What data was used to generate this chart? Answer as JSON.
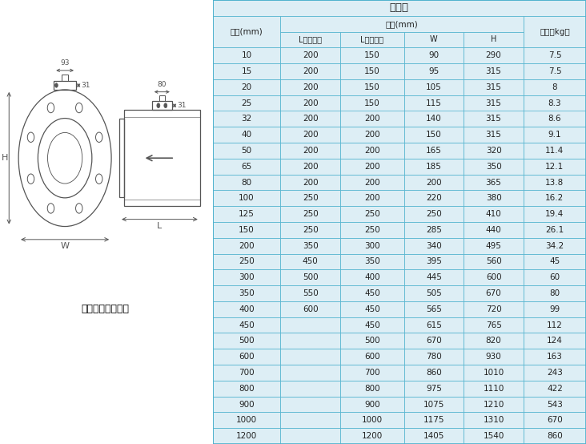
{
  "title": "分体式",
  "col_headers": [
    "口径(mm)",
    "L（四氟）",
    "L（橡胶）",
    "W",
    "H",
    "重量（kg）"
  ],
  "header1_left": "口径(mm)",
  "header1_mid": "尺寸(mm)",
  "header1_right": "重量（kg）",
  "header2": [
    "L（四氟）",
    "L（橡胶）",
    "W",
    "H"
  ],
  "rows": [
    [
      "10",
      "200",
      "150",
      "90",
      "290",
      "7.5"
    ],
    [
      "15",
      "200",
      "150",
      "95",
      "315",
      "7.5"
    ],
    [
      "20",
      "200",
      "150",
      "105",
      "315",
      "8"
    ],
    [
      "25",
      "200",
      "150",
      "115",
      "315",
      "8.3"
    ],
    [
      "32",
      "200",
      "200",
      "140",
      "315",
      "8.6"
    ],
    [
      "40",
      "200",
      "200",
      "150",
      "315",
      "9.1"
    ],
    [
      "50",
      "200",
      "200",
      "165",
      "320",
      "11.4"
    ],
    [
      "65",
      "200",
      "200",
      "185",
      "350",
      "12.1"
    ],
    [
      "80",
      "200",
      "200",
      "200",
      "365",
      "13.8"
    ],
    [
      "100",
      "250",
      "200",
      "220",
      "380",
      "16.2"
    ],
    [
      "125",
      "250",
      "250",
      "250",
      "410",
      "19.4"
    ],
    [
      "150",
      "250",
      "250",
      "285",
      "440",
      "26.1"
    ],
    [
      "200",
      "350",
      "300",
      "340",
      "495",
      "34.2"
    ],
    [
      "250",
      "450",
      "350",
      "395",
      "560",
      "45"
    ],
    [
      "300",
      "500",
      "400",
      "445",
      "600",
      "60"
    ],
    [
      "350",
      "550",
      "450",
      "505",
      "670",
      "80"
    ],
    [
      "400",
      "600",
      "450",
      "565",
      "720",
      "99"
    ],
    [
      "450",
      "",
      "450",
      "615",
      "765",
      "112"
    ],
    [
      "500",
      "",
      "500",
      "670",
      "820",
      "124"
    ],
    [
      "600",
      "",
      "600",
      "780",
      "930",
      "163"
    ],
    [
      "700",
      "",
      "700",
      "860",
      "1010",
      "243"
    ],
    [
      "800",
      "",
      "800",
      "975",
      "1110",
      "422"
    ],
    [
      "900",
      "",
      "900",
      "1075",
      "1210",
      "543"
    ],
    [
      "1000",
      "",
      "1000",
      "1175",
      "1310",
      "670"
    ],
    [
      "1200",
      "",
      "1200",
      "1405",
      "1540",
      "860"
    ]
  ],
  "bg_color": "#ddeef5",
  "border_color": "#4ab0cc",
  "text_color": "#222222",
  "diagram_label": "法兰形（分体型）",
  "fig_width": 7.32,
  "fig_height": 5.54,
  "dpi": 100
}
